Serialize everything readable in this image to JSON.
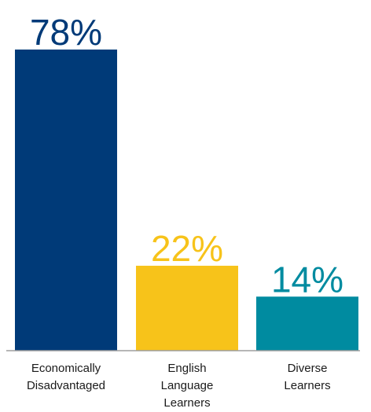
{
  "chart_data": {
    "type": "bar",
    "categories": [
      [
        "Economically",
        "Disadvantaged"
      ],
      [
        "English",
        "Language",
        "Learners"
      ],
      [
        "Diverse",
        "Learners"
      ]
    ],
    "values": [
      78,
      22,
      14
    ],
    "value_labels": [
      "78%",
      "22%",
      "14%"
    ],
    "colors": [
      "#003a78",
      "#f7c31a",
      "#008ba0"
    ],
    "ylim": [
      0,
      100
    ],
    "title": "",
    "xlabel": "",
    "ylabel": "",
    "grid": false,
    "legend": "none"
  }
}
